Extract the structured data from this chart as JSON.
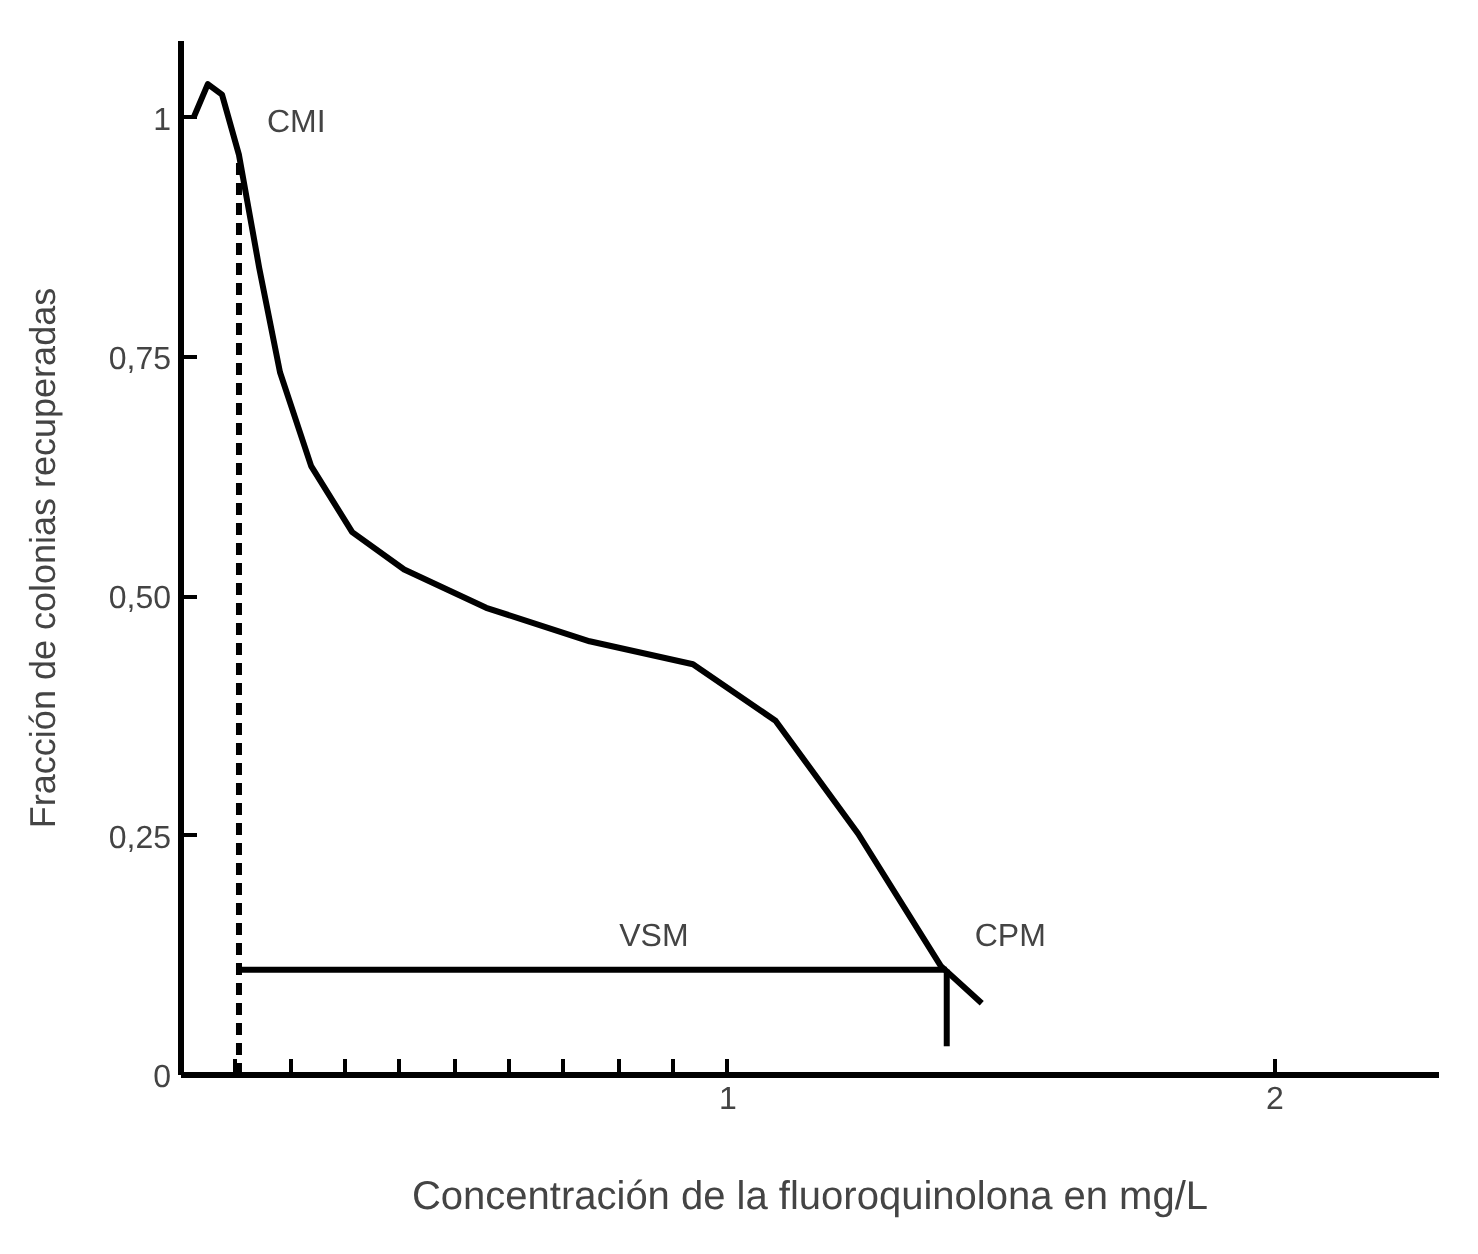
{
  "chart_data": {
    "type": "line",
    "xlabel": "Concentración de la fluoroquinolona en mg/L",
    "ylabel": "Fracción de colonias recuperadas",
    "xlim": [
      0,
      2.3
    ],
    "ylim": [
      0,
      1.08
    ],
    "xticks": [
      {
        "value": 0,
        "label": null
      },
      {
        "value": 0.1,
        "label": null
      },
      {
        "value": 0.2,
        "label": null
      },
      {
        "value": 0.3,
        "label": null
      },
      {
        "value": 0.4,
        "label": null
      },
      {
        "value": 0.5,
        "label": null
      },
      {
        "value": 0.6,
        "label": null
      },
      {
        "value": 0.7,
        "label": null
      },
      {
        "value": 0.8,
        "label": null
      },
      {
        "value": 0.9,
        "label": null
      },
      1,
      2
    ],
    "yticks": [
      0,
      {
        "value": 0.25,
        "label": "0,25"
      },
      {
        "value": 0.5,
        "label": "0,50"
      },
      {
        "value": 0.75,
        "label": "0,75"
      },
      1
    ],
    "grid": false,
    "marker": "none",
    "series": [
      {
        "color": "#000000",
        "line_style": "solid",
        "x": [
          0.023,
          0.049,
          0.075,
          0.106,
          0.143,
          0.181,
          0.238,
          0.313,
          0.408,
          0.558,
          0.747,
          0.936,
          1.087,
          1.238,
          1.389,
          1.464
        ],
        "values": [
          1.0,
          1.035,
          1.024,
          0.961,
          0.843,
          0.734,
          0.636,
          0.567,
          0.528,
          0.488,
          0.453,
          0.429,
          0.37,
          0.252,
          0.114,
          0.075
        ]
      },
      {
        "color": "#000000",
        "line_style": "dashed",
        "x": [
          0.106,
          0.106
        ],
        "values": [
          0,
          0.96
        ]
      },
      {
        "color": "#000000",
        "line_style": "solid",
        "x": [
          0.106,
          1.4
        ],
        "values": [
          0.11,
          0.11
        ]
      },
      {
        "color": "#000000",
        "line_style": "solid",
        "x": [
          1.4,
          1.4
        ],
        "values": [
          0.11,
          0.03
        ]
      }
    ],
    "annotations": [
      {
        "text": "CMI",
        "x": 0.106,
        "y": 0.96
      },
      {
        "text": "VSM",
        "x": 0.75,
        "y": 0.11
      },
      {
        "text": "CPM",
        "x": 1.4,
        "y": 0.11
      }
    ]
  }
}
